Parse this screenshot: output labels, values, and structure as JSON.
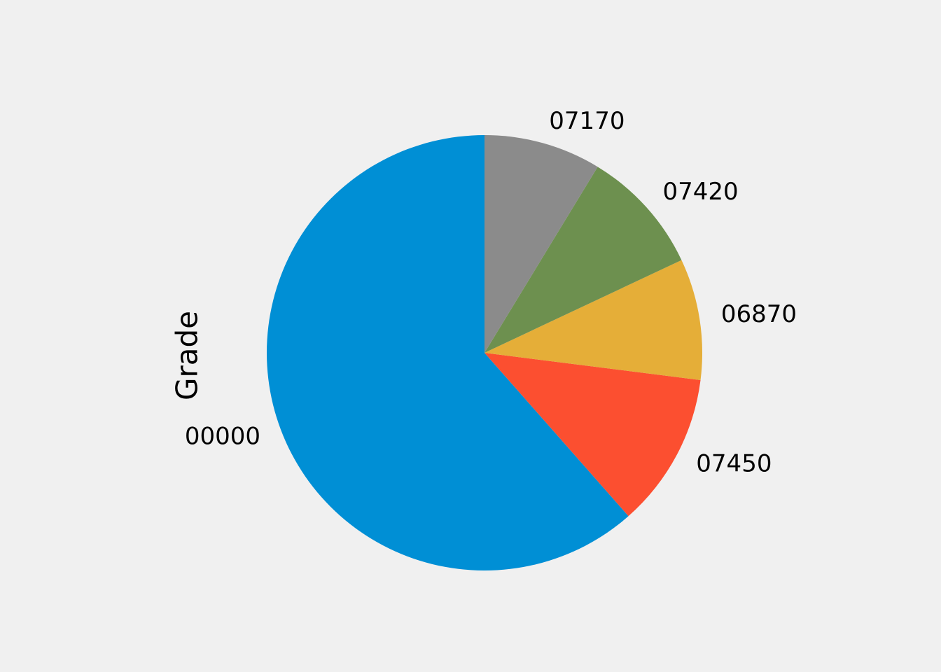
{
  "chart_data": {
    "type": "pie",
    "ylabel": "Grade",
    "start_angle_deg": 90,
    "direction": "counterclockwise",
    "slices": [
      {
        "label": "00000",
        "value": 61.5,
        "color": "#008fd5"
      },
      {
        "label": "07450",
        "value": 11.5,
        "color": "#fc4f30"
      },
      {
        "label": "06870",
        "value": 9.0,
        "color": "#e5ae38"
      },
      {
        "label": "07420",
        "value": 9.3,
        "color": "#6d904f"
      },
      {
        "label": "07170",
        "value": 8.7,
        "color": "#8b8b8b"
      }
    ]
  }
}
